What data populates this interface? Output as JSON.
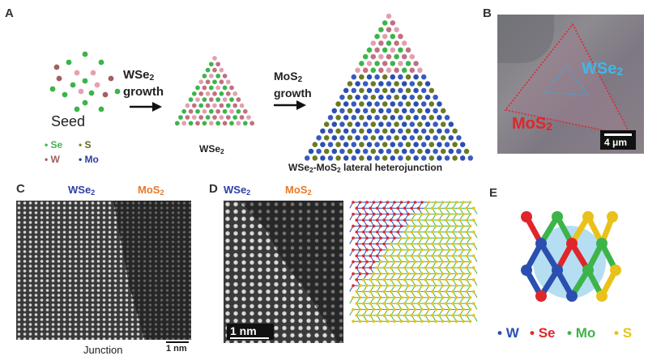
{
  "panels": {
    "a": "A",
    "b": "B",
    "c": "C",
    "d": "D",
    "e": "E"
  },
  "panel_a": {
    "seed_label": "Seed",
    "legend": {
      "se": "Se",
      "s": "S",
      "w": "W",
      "mo": "Mo"
    },
    "step1": {
      "base": "WSe",
      "sub": "2",
      "word": "growth"
    },
    "step2": {
      "base": "MoS",
      "sub": "2",
      "word": "growth"
    },
    "tri1_label": {
      "base": "WSe",
      "sub": "2"
    },
    "tri2_label": {
      "p1": "WSe",
      "s1": "2",
      "p2": "-MoS",
      "s2": "2",
      "p3": " lateral heterojunction"
    }
  },
  "panel_b": {
    "inner": {
      "base": "WSe",
      "sub": "2"
    },
    "outer": {
      "base": "MoS",
      "sub": "2"
    },
    "scale": "4 μm"
  },
  "panel_c": {
    "left": {
      "base": "WSe",
      "sub": "2"
    },
    "right": {
      "base": "MoS",
      "sub": "2"
    },
    "bottom": "Junction",
    "scale": "1 nm"
  },
  "panel_d": {
    "left": {
      "base": "WSe",
      "sub": "2"
    },
    "right": {
      "base": "MoS",
      "sub": "2"
    },
    "scale": "1 nm"
  },
  "panel_e": {
    "legend": {
      "w": "W",
      "se": "Se",
      "mo": "Mo",
      "s": "S"
    }
  },
  "colors": {
    "w": "#2a4fb0",
    "se": "#e0262b",
    "mo": "#3cb44a",
    "s": "#e8c21a",
    "wse_label": "#2c3fa8",
    "mos_label": "#e8772a",
    "cyan": "#3fa8d8"
  }
}
